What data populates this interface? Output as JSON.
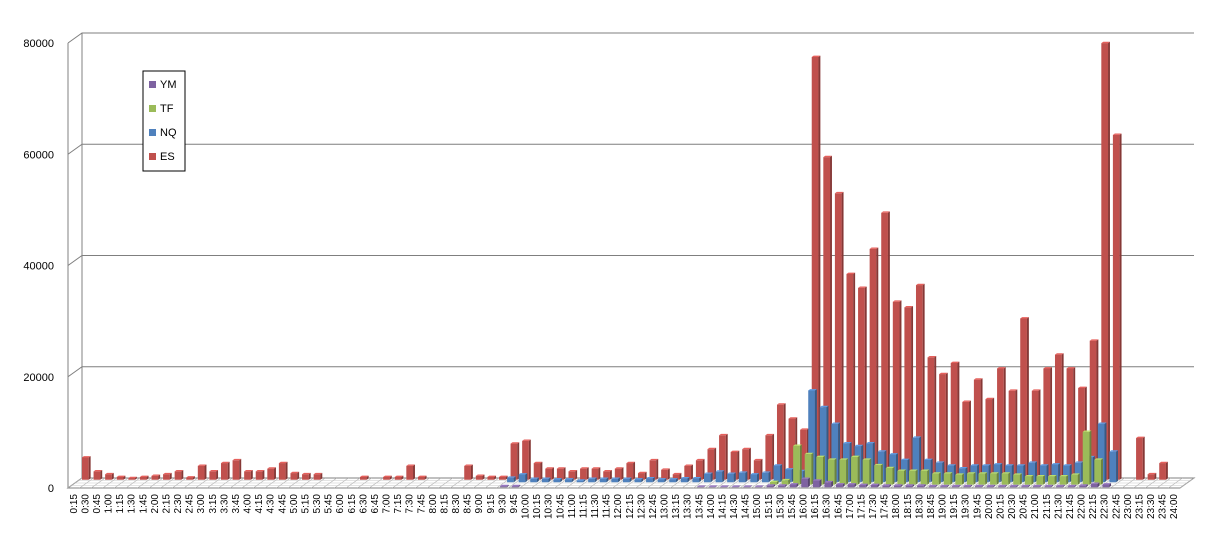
{
  "chart_data": {
    "type": "bar",
    "title": "",
    "xlabel": "",
    "ylabel": "",
    "ylim": [
      0,
      80000
    ],
    "yticks": [
      0,
      20000,
      40000,
      60000,
      80000
    ],
    "grid": true,
    "legend_position": "top-left",
    "categories": [
      "0:15",
      "0:30",
      "0:45",
      "1:00",
      "1:15",
      "1:30",
      "1:45",
      "2:00",
      "2:15",
      "2:30",
      "2:45",
      "3:00",
      "3:15",
      "3:30",
      "3:45",
      "4:00",
      "4:15",
      "4:30",
      "4:45",
      "5:00",
      "5:15",
      "5:30",
      "5:45",
      "6:00",
      "6:15",
      "6:30",
      "6:45",
      "7:00",
      "7:15",
      "7:30",
      "7:45",
      "8:00",
      "8:15",
      "8:30",
      "8:45",
      "9:00",
      "9:15",
      "9:30",
      "9:45",
      "10:00",
      "10:15",
      "10:30",
      "10:45",
      "11:00",
      "11:15",
      "11:30",
      "11:45",
      "12:00",
      "12:15",
      "12:30",
      "12:45",
      "13:00",
      "13:15",
      "13:30",
      "13:45",
      "14:00",
      "14:15",
      "14:30",
      "14:45",
      "15:00",
      "15:15",
      "15:30",
      "15:45",
      "16:00",
      "16:15",
      "16:30",
      "16:45",
      "17:00",
      "17:15",
      "17:30",
      "17:45",
      "18:00",
      "18:15",
      "18:30",
      "18:45",
      "19:00",
      "19:15",
      "19:30",
      "19:45",
      "20:00",
      "20:15",
      "20:30",
      "20:45",
      "21:00",
      "21:15",
      "21:30",
      "21:45",
      "22:00",
      "22:15",
      "22:30",
      "22:45",
      "23:00",
      "23:15",
      "23:30",
      "23:45",
      "24:00"
    ],
    "series": [
      {
        "name": "YM",
        "color": "#7e62a1",
        "values": [
          0,
          0,
          0,
          0,
          0,
          0,
          0,
          0,
          0,
          0,
          0,
          0,
          0,
          0,
          0,
          0,
          0,
          0,
          0,
          0,
          0,
          0,
          0,
          0,
          0,
          0,
          0,
          0,
          0,
          0,
          0,
          0,
          0,
          0,
          0,
          0,
          0,
          200,
          200,
          0,
          0,
          0,
          0,
          0,
          0,
          0,
          0,
          0,
          0,
          0,
          0,
          0,
          0,
          0,
          100,
          100,
          100,
          100,
          100,
          100,
          300,
          300,
          500,
          1500,
          1200,
          900,
          500,
          500,
          400,
          400,
          300,
          300,
          300,
          300,
          200,
          200,
          200,
          200,
          200,
          200,
          200,
          200,
          200,
          200,
          200,
          200,
          200,
          300,
          600,
          500,
          0,
          0,
          0,
          0,
          0,
          0
        ]
      },
      {
        "name": "TF",
        "color": "#9bbb59",
        "values": [
          0,
          0,
          0,
          0,
          0,
          0,
          0,
          0,
          0,
          0,
          0,
          0,
          0,
          0,
          0,
          0,
          0,
          0,
          0,
          0,
          0,
          0,
          0,
          0,
          0,
          0,
          0,
          0,
          0,
          0,
          0,
          0,
          0,
          0,
          0,
          0,
          0,
          0,
          0,
          0,
          0,
          0,
          0,
          0,
          0,
          0,
          0,
          0,
          0,
          0,
          0,
          0,
          0,
          0,
          0,
          0,
          0,
          0,
          0,
          0,
          500,
          800,
          7000,
          5500,
          5000,
          4500,
          4500,
          5000,
          4500,
          3500,
          3000,
          2500,
          2500,
          2500,
          2000,
          2000,
          1800,
          2000,
          2000,
          2000,
          2000,
          1800,
          1500,
          1500,
          1500,
          1500,
          1800,
          9500,
          4500,
          0,
          0,
          0,
          0,
          0,
          0,
          0
        ]
      },
      {
        "name": "NQ",
        "color": "#4f81bd",
        "values": [
          0,
          0,
          0,
          0,
          0,
          0,
          0,
          0,
          0,
          0,
          0,
          0,
          0,
          0,
          0,
          0,
          0,
          0,
          0,
          0,
          0,
          0,
          0,
          0,
          0,
          0,
          0,
          0,
          0,
          0,
          0,
          0,
          0,
          0,
          0,
          0,
          0,
          800,
          1400,
          600,
          600,
          500,
          500,
          300,
          600,
          600,
          600,
          600,
          500,
          700,
          500,
          500,
          700,
          700,
          1500,
          1900,
          1500,
          1700,
          1400,
          1700,
          3000,
          2300,
          2000,
          16500,
          13500,
          10500,
          7000,
          6500,
          7000,
          5500,
          5000,
          4000,
          8000,
          4000,
          3500,
          3000,
          2500,
          3000,
          3000,
          3200,
          3000,
          3000,
          3500,
          3000,
          3200,
          3000,
          3500,
          4500,
          10500,
          5500,
          0,
          0,
          0,
          0,
          0,
          0
        ]
      },
      {
        "name": "ES",
        "color": "#c0504d",
        "values": [
          4000,
          1500,
          1000,
          500,
          300,
          500,
          700,
          1000,
          1500,
          400,
          2500,
          1500,
          3000,
          3500,
          1500,
          1500,
          2000,
          3000,
          1200,
          1000,
          1000,
          0,
          0,
          0,
          500,
          0,
          500,
          500,
          2500,
          500,
          0,
          0,
          0,
          2500,
          700,
          500,
          500,
          6500,
          7000,
          3000,
          2000,
          2000,
          1500,
          2000,
          2000,
          1500,
          2000,
          3000,
          1200,
          3500,
          1800,
          1000,
          2500,
          3500,
          5500,
          8000,
          5000,
          5500,
          3500,
          8000,
          13500,
          11000,
          9000,
          76000,
          58000,
          51500,
          37000,
          34500,
          41500,
          48000,
          32000,
          31000,
          35000,
          22000,
          19000,
          21000,
          14000,
          18000,
          14500,
          20000,
          16000,
          29000,
          16000,
          20000,
          22500,
          20000,
          16500,
          25000,
          78500,
          62000,
          0,
          7500,
          1000,
          3000,
          0,
          0
        ]
      }
    ]
  }
}
